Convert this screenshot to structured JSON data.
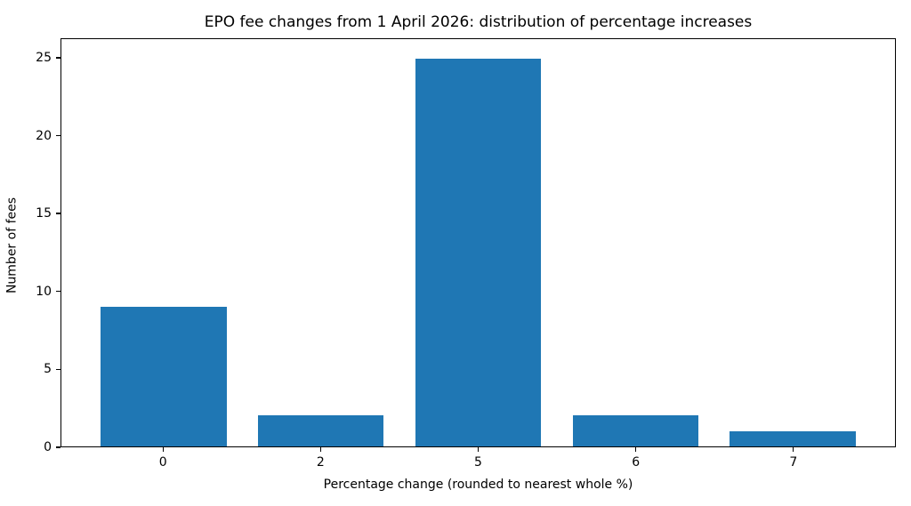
{
  "chart_data": {
    "type": "bar",
    "title": "EPO fee changes from 1 April 2026: distribution of percentage increases",
    "xlabel": "Percentage change (rounded to nearest whole %)",
    "ylabel": "Number of fees",
    "categories": [
      "0",
      "2",
      "5",
      "6",
      "7"
    ],
    "values": [
      9,
      2,
      25,
      2,
      1
    ],
    "yticks": [
      0,
      5,
      10,
      15,
      20,
      25
    ],
    "ylim": [
      0,
      26.25
    ],
    "xlim": [
      -0.65,
      4.65
    ],
    "bar_width_units": 0.8,
    "bar_color": "#1f77b4",
    "grid": false,
    "legend": false,
    "spine_color": "#000000",
    "background_color": "#ffffff"
  }
}
